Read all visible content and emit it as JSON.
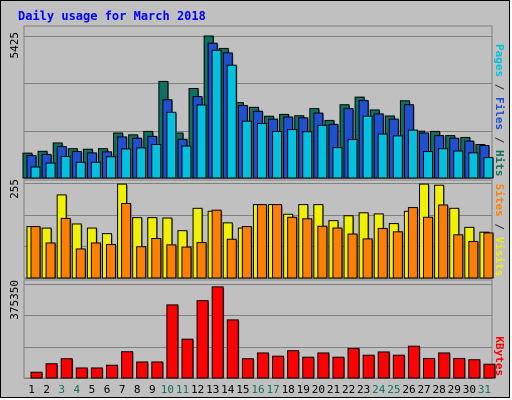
{
  "title": "Daily usage for March 2018",
  "chart_data": [
    {
      "type": "bar",
      "title": "Daily usage for March 2018",
      "ylabel_parts": [
        {
          "text": "Pages",
          "color": "#00c0e0"
        },
        {
          "text": " / ",
          "color": "#303030"
        },
        {
          "text": "Files",
          "color": "#2050d0"
        },
        {
          "text": " / ",
          "color": "#303030"
        },
        {
          "text": "Hits",
          "color": "#107060"
        }
      ],
      "ytick_label": "5425",
      "ylim": [
        0,
        5425
      ],
      "categories": [
        "1",
        "2",
        "3",
        "4",
        "5",
        "6",
        "7",
        "8",
        "9",
        "10",
        "11",
        "12",
        "13",
        "14",
        "15",
        "16",
        "17",
        "18",
        "19",
        "20",
        "21",
        "22",
        "23",
        "24",
        "25",
        "26",
        "27",
        "28",
        "29",
        "30",
        "31"
      ],
      "series": [
        {
          "name": "Hits",
          "color": "#107060",
          "values": [
            950,
            1020,
            1340,
            1120,
            1100,
            1120,
            1720,
            1650,
            1780,
            3690,
            1720,
            3420,
            5425,
            4950,
            2880,
            2700,
            2360,
            2430,
            2380,
            2650,
            2200,
            2800,
            3090,
            2600,
            2370,
            2950,
            1790,
            1780,
            1620,
            1550,
            1280
          ]
        },
        {
          "name": "Files",
          "color": "#2050d0",
          "values": [
            860,
            900,
            1200,
            1010,
            960,
            1000,
            1570,
            1520,
            1590,
            2990,
            1480,
            3110,
            5150,
            4780,
            2770,
            2550,
            2250,
            2330,
            2300,
            2480,
            2050,
            2650,
            2960,
            2450,
            2250,
            2800,
            1720,
            1620,
            1520,
            1410,
            1240
          ]
        },
        {
          "name": "Pages",
          "color": "#00c0e0",
          "values": [
            420,
            570,
            820,
            600,
            600,
            810,
            1110,
            1150,
            1280,
            2510,
            1220,
            2790,
            4880,
            4310,
            2170,
            2080,
            1780,
            1850,
            1770,
            2010,
            1160,
            1470,
            2360,
            1680,
            1610,
            1830,
            1010,
            1120,
            1030,
            960,
            780
          ]
        }
      ]
    },
    {
      "type": "bar",
      "ylabel_parts": [
        {
          "text": "Sites",
          "color": "#ff8000"
        },
        {
          "text": " / ",
          "color": "#303030"
        },
        {
          "text": "Visits",
          "color": "#f0f000"
        }
      ],
      "ytick_label": "255",
      "ylim": [
        0,
        255
      ],
      "categories": [
        "1",
        "2",
        "3",
        "4",
        "5",
        "6",
        "7",
        "8",
        "9",
        "10",
        "11",
        "12",
        "13",
        "14",
        "15",
        "16",
        "17",
        "18",
        "19",
        "20",
        "21",
        "22",
        "23",
        "24",
        "25",
        "26",
        "27",
        "28",
        "29",
        "30",
        "31"
      ],
      "series": [
        {
          "name": "Visits",
          "color": "#f0f000",
          "values": [
            138,
            134,
            223,
            145,
            134,
            119,
            252,
            162,
            162,
            161,
            127,
            187,
            179,
            148,
            134,
            197,
            197,
            171,
            197,
            197,
            154,
            167,
            175,
            172,
            146,
            179,
            252,
            249,
            187,
            136,
            123
          ]
        },
        {
          "name": "Sites",
          "color": "#ff8000",
          "values": [
            138,
            94,
            160,
            78,
            94,
            90,
            200,
            84,
            106,
            89,
            83,
            95,
            182,
            104,
            138,
            197,
            197,
            163,
            159,
            139,
            134,
            118,
            105,
            133,
            124,
            189,
            163,
            196,
            116,
            98,
            121
          ]
        }
      ]
    },
    {
      "type": "bar",
      "ylabel_parts": [
        {
          "text": "KBytes",
          "color": "#ff0000"
        }
      ],
      "ytick_label": "375350",
      "ylim": [
        0,
        375350
      ],
      "categories": [
        "1",
        "2",
        "3",
        "4",
        "5",
        "6",
        "7",
        "8",
        "9",
        "10",
        "11",
        "12",
        "13",
        "14",
        "15",
        "16",
        "17",
        "18",
        "19",
        "20",
        "21",
        "22",
        "23",
        "24",
        "25",
        "26",
        "27",
        "28",
        "29",
        "30",
        "31"
      ],
      "series": [
        {
          "name": "KBytes",
          "color": "#ff0000",
          "values": [
            23000,
            57000,
            77000,
            40000,
            40000,
            51000,
            105000,
            64000,
            64000,
            292000,
            155000,
            309000,
            364000,
            232000,
            77000,
            100000,
            87000,
            109000,
            83000,
            100000,
            83000,
            118000,
            91000,
            104000,
            91000,
            127000,
            78000,
            100000,
            78000,
            73000,
            55000
          ]
        }
      ]
    }
  ],
  "day_label_colors": [
    "#000000",
    "#000000",
    "#107060",
    "#107060",
    "#000000",
    "#000000",
    "#000000",
    "#000000",
    "#000000",
    "#107060",
    "#107060",
    "#000000",
    "#000000",
    "#000000",
    "#000000",
    "#107060",
    "#107060",
    "#000000",
    "#000000",
    "#000000",
    "#000000",
    "#000000",
    "#000000",
    "#107060",
    "#107060",
    "#000000",
    "#000000",
    "#000000",
    "#000000",
    "#000000",
    "#107060"
  ]
}
